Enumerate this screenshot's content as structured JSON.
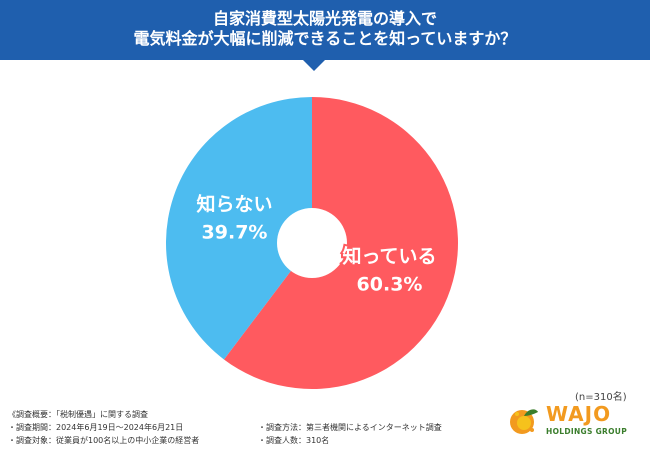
{
  "header": {
    "title_line1": "自家消費型太陽光発電の導入で",
    "title_line2": "電気料金が大幅に削減できることを知っていますか？"
  },
  "chart_data": {
    "type": "pie",
    "title": "自家消費型太陽光発電の導入で電気料金が大幅に削減できることを知っていますか？",
    "slices": [
      {
        "label": "知っている",
        "value": 60.3,
        "display": "60.3%",
        "color": "#ff5a5f"
      },
      {
        "label": "知らない",
        "value": 39.7,
        "display": "39.7%",
        "color": "#4dbcf0"
      }
    ],
    "unit": "%",
    "donut": true
  },
  "sample_note": "(n=310名)",
  "survey_notes": {
    "left": [
      "《調査概要：「税制優遇」に関する調査",
      "・調査期間：2024年6月19日〜2024年6月21日",
      "・調査対象：従業員が100名以上の中小企業の経営者"
    ],
    "right": [
      "・調査方法：第三者機関によるインターネット調査",
      "・調査人数：310名"
    ]
  },
  "logo": {
    "word": "WAJO",
    "sub": "HOLDINGS GROUP",
    "colors": {
      "orange": "#f29a1f",
      "green": "#3a7d2c",
      "yellow": "#f6c21c"
    }
  }
}
